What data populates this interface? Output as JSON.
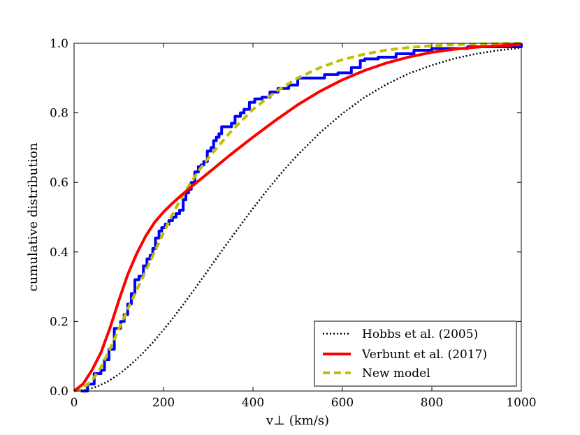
{
  "chart_data": {
    "type": "line",
    "title": "",
    "xlabel": "v⊥ (km/s)",
    "ylabel": "cumulative distribution",
    "xlim": [
      0,
      1000
    ],
    "ylim": [
      0.0,
      1.0
    ],
    "x_ticks": [
      "0",
      "200",
      "400",
      "600",
      "800",
      "1000"
    ],
    "y_ticks": [
      "0.0",
      "0.2",
      "0.4",
      "0.6",
      "0.8",
      "1.0"
    ],
    "grid": false,
    "legend_position": "lower-right",
    "series": [
      {
        "name": "Hobbs et al. (2005)",
        "color": "#000000",
        "style": "dotted",
        "x": [
          0,
          25,
          50,
          75,
          100,
          125,
          150,
          175,
          200,
          225,
          250,
          275,
          300,
          325,
          350,
          375,
          400,
          425,
          450,
          475,
          500,
          550,
          600,
          650,
          700,
          750,
          800,
          850,
          900,
          950,
          1000
        ],
        "y": [
          0.0,
          0.003,
          0.012,
          0.027,
          0.048,
          0.074,
          0.104,
          0.138,
          0.176,
          0.216,
          0.259,
          0.303,
          0.348,
          0.394,
          0.438,
          0.482,
          0.525,
          0.567,
          0.606,
          0.644,
          0.679,
          0.743,
          0.798,
          0.845,
          0.883,
          0.914,
          0.937,
          0.956,
          0.97,
          0.98,
          0.987
        ]
      },
      {
        "name": "Verbunt et al. (2017)",
        "color": "#ff0000",
        "style": "solid",
        "x": [
          0,
          20,
          40,
          60,
          80,
          100,
          120,
          140,
          160,
          180,
          200,
          220,
          240,
          260,
          280,
          300,
          350,
          400,
          450,
          500,
          550,
          600,
          650,
          700,
          750,
          800,
          850,
          900,
          950,
          1000
        ],
        "y": [
          0.0,
          0.02,
          0.06,
          0.11,
          0.18,
          0.26,
          0.335,
          0.395,
          0.445,
          0.485,
          0.515,
          0.54,
          0.563,
          0.585,
          0.606,
          0.627,
          0.68,
          0.73,
          0.778,
          0.823,
          0.862,
          0.895,
          0.922,
          0.944,
          0.961,
          0.974,
          0.983,
          0.989,
          0.993,
          0.996
        ]
      },
      {
        "name": "New model",
        "color": "#bfbf00",
        "style": "dashed",
        "x": [
          0,
          20,
          40,
          60,
          80,
          100,
          120,
          140,
          160,
          180,
          200,
          220,
          240,
          260,
          280,
          300,
          350,
          400,
          450,
          500,
          550,
          600,
          650,
          700,
          750,
          800,
          850,
          900,
          950,
          1000
        ],
        "y": [
          0.0,
          0.008,
          0.03,
          0.068,
          0.12,
          0.178,
          0.235,
          0.29,
          0.345,
          0.4,
          0.455,
          0.508,
          0.555,
          0.597,
          0.636,
          0.67,
          0.745,
          0.81,
          0.86,
          0.9,
          0.93,
          0.953,
          0.969,
          0.981,
          0.988,
          0.993,
          0.996,
          0.998,
          0.999,
          1.0
        ]
      },
      {
        "name": "",
        "color": "#0000ff",
        "style": "step",
        "x": [
          15,
          30,
          45,
          60,
          68,
          78,
          90,
          104,
          112,
          120,
          128,
          136,
          145,
          155,
          163,
          170,
          176,
          182,
          190,
          196,
          204,
          212,
          220,
          228,
          236,
          244,
          250,
          256,
          262,
          270,
          278,
          284,
          290,
          298,
          306,
          312,
          318,
          324,
          330,
          338,
          345,
          352,
          360,
          372,
          380,
          392,
          404,
          420,
          438,
          456,
          480,
          500,
          510,
          530,
          560,
          590,
          620,
          640,
          650,
          680,
          720,
          760,
          800,
          830,
          880,
          950,
          990,
          1000
        ],
        "y": [
          0.0,
          0.02,
          0.05,
          0.06,
          0.09,
          0.12,
          0.18,
          0.2,
          0.22,
          0.25,
          0.28,
          0.32,
          0.33,
          0.36,
          0.38,
          0.39,
          0.41,
          0.44,
          0.46,
          0.47,
          0.48,
          0.49,
          0.5,
          0.51,
          0.52,
          0.55,
          0.57,
          0.58,
          0.6,
          0.63,
          0.645,
          0.65,
          0.66,
          0.69,
          0.7,
          0.72,
          0.73,
          0.74,
          0.76,
          0.76,
          0.76,
          0.77,
          0.79,
          0.8,
          0.81,
          0.83,
          0.84,
          0.845,
          0.86,
          0.87,
          0.88,
          0.9,
          0.9,
          0.9,
          0.91,
          0.915,
          0.93,
          0.95,
          0.955,
          0.96,
          0.97,
          0.98,
          0.985,
          0.985,
          0.99,
          0.99,
          0.99,
          1.0
        ]
      }
    ]
  }
}
